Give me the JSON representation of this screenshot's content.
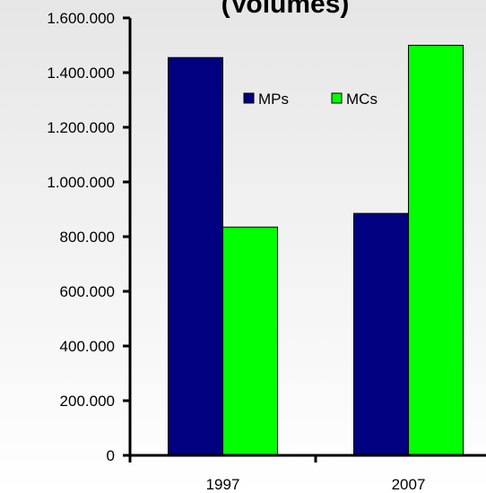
{
  "chart_data": {
    "type": "bar",
    "title": "(Volumes)",
    "categories": [
      "1997",
      "2007"
    ],
    "series": [
      {
        "name": "MPs",
        "color": "#000080",
        "values": [
          1455000,
          885000
        ]
      },
      {
        "name": "MCs",
        "color": "#00ff00",
        "values": [
          835000,
          1500000
        ]
      }
    ],
    "ylim": [
      0,
      1600000
    ],
    "yticks": [
      {
        "value": 0,
        "label": "0"
      },
      {
        "value": 200000,
        "label": "200.000"
      },
      {
        "value": 400000,
        "label": "400.000"
      },
      {
        "value": 600000,
        "label": "600.000"
      },
      {
        "value": 800000,
        "label": "800.000"
      },
      {
        "value": 1000000,
        "label": "1.000.000"
      },
      {
        "value": 1200000,
        "label": "1.200.000"
      },
      {
        "value": 1400000,
        "label": "1.400.000"
      },
      {
        "value": 1600000,
        "label": "1.600.000"
      }
    ],
    "grid": false,
    "legend": "top"
  }
}
